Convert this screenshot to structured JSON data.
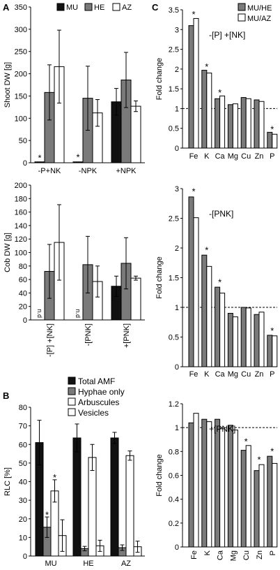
{
  "panel_labels": [
    "A",
    "B",
    "C"
  ],
  "colors": {
    "MU": "#111111",
    "HE": "#7a7a7a",
    "AZ": "#ffffff",
    "Hyphae": "#7a7a7a",
    "outline": "#000000"
  },
  "chart_data": [
    {
      "id": "A1",
      "type": "bar",
      "ylabel": "Shoot DW [g]",
      "ylim": [
        0,
        350
      ],
      "yticks": [
        0,
        50,
        100,
        150,
        200,
        250,
        300,
        350
      ],
      "categories": [
        "-P+NK",
        "-NPK",
        "+NPK"
      ],
      "legend": [
        "MU",
        "HE",
        "AZ"
      ],
      "legend_position": "top",
      "series": [
        {
          "name": "MU",
          "values": [
            2,
            2,
            137
          ],
          "err": [
            0,
            0,
            30
          ]
        },
        {
          "name": "HE",
          "values": [
            158,
            145,
            186
          ],
          "err": [
            62,
            72,
            62
          ]
        },
        {
          "name": "AZ",
          "values": [
            216,
            112,
            127
          ],
          "err": [
            82,
            30,
            12
          ]
        }
      ],
      "markers": [
        {
          "text": "*",
          "category": 0,
          "series": 0,
          "y": 10
        },
        {
          "text": "*",
          "category": 1,
          "series": 0,
          "y": 12
        }
      ]
    },
    {
      "id": "A2",
      "type": "bar",
      "ylabel": "Cob DW [g]",
      "ylim": [
        0,
        200
      ],
      "yticks": [
        0,
        20,
        40,
        60,
        80,
        100,
        120,
        140,
        160,
        180,
        200
      ],
      "categories": [
        "-[P] +[NK]",
        "-[PNK]",
        "+[PNK]"
      ],
      "series": [
        {
          "name": "MU",
          "values": [
            0,
            0,
            50
          ],
          "err": [
            0,
            0,
            15
          ]
        },
        {
          "name": "HE",
          "values": [
            72,
            82,
            84
          ],
          "err": [
            40,
            42,
            38
          ]
        },
        {
          "name": "AZ",
          "values": [
            115,
            57,
            62
          ],
          "err": [
            56,
            23,
            3
          ]
        }
      ],
      "nd": [
        {
          "text": "n.d",
          "category": 0
        },
        {
          "text": "n.d",
          "category": 1
        }
      ]
    },
    {
      "id": "B",
      "type": "bar",
      "ylabel": "RLC [%]",
      "ylim": [
        0,
        80
      ],
      "yticks": [
        0,
        10,
        20,
        30,
        40,
        50,
        60,
        70,
        80
      ],
      "categories": [
        "MU",
        "HE",
        "AZ"
      ],
      "legend": [
        "Total AMF",
        "Hyphae only",
        "Arbuscules",
        "Vesicles"
      ],
      "legend_position": "top-right",
      "series": [
        {
          "name": "Total AMF",
          "values": [
            61,
            63.5,
            63.5
          ],
          "err": [
            12,
            7.5,
            3
          ]
        },
        {
          "name": "Hyphae only",
          "values": [
            15.5,
            4,
            4.5
          ],
          "err": [
            5.5,
            1.2,
            1.5
          ]
        },
        {
          "name": "Arbuscules",
          "values": [
            35,
            53,
            54
          ],
          "err": [
            6,
            7,
            2.5
          ]
        },
        {
          "name": "Vesicles",
          "values": [
            11,
            5.5,
            5
          ],
          "err": [
            8.5,
            3,
            3
          ]
        }
      ],
      "markers": [
        {
          "text": "*",
          "category": 0,
          "series": 1,
          "y": 22
        },
        {
          "text": "*",
          "category": 0,
          "series": 2,
          "y": 42
        }
      ]
    },
    {
      "id": "C1",
      "type": "bar",
      "title": "-[P] +[NK]",
      "ylabel": "Fold change",
      "ylim": [
        0,
        3.5
      ],
      "yticks": [
        0,
        0.5,
        1,
        1.5,
        2,
        2.5,
        3,
        3.5
      ],
      "reference_line": 1,
      "categories": [
        "Fe",
        "K",
        "Ca",
        "Mg",
        "Cu",
        "Zn",
        "P"
      ],
      "legend": [
        "MU/HE",
        "MU/AZ"
      ],
      "legend_position": "top-right",
      "series": [
        {
          "name": "MU/HE",
          "values": [
            3.1,
            1.97,
            1.25,
            1.1,
            1.28,
            1.22,
            0.4
          ]
        },
        {
          "name": "MU/AZ",
          "values": [
            3.28,
            1.9,
            1.32,
            1.12,
            1.25,
            1.18,
            0.35
          ]
        }
      ],
      "markers": [
        {
          "text": "*",
          "category": 0,
          "y": 3.38
        },
        {
          "text": "*",
          "category": 1,
          "y": 2.05
        },
        {
          "text": "*",
          "category": 2,
          "y": 1.4
        },
        {
          "text": "*",
          "category": 6,
          "y": 0.47
        }
      ]
    },
    {
      "id": "C2",
      "type": "bar",
      "title": "-[PNK]",
      "ylabel": "Fold change",
      "ylim": [
        0,
        3
      ],
      "yticks": [
        0,
        0.5,
        1,
        1.5,
        2,
        2.5,
        3
      ],
      "reference_line": 1,
      "categories": [
        "Fe",
        "K",
        "Ca",
        "Mg",
        "Cu",
        "Zn",
        "P"
      ],
      "series": [
        {
          "name": "MU/HE",
          "values": [
            2.86,
            1.88,
            1.34,
            0.9,
            1.0,
            0.88,
            0.53
          ]
        },
        {
          "name": "MU/AZ",
          "values": [
            2.51,
            1.69,
            1.24,
            0.84,
            0.99,
            0.92,
            0.52
          ]
        }
      ],
      "markers": [
        {
          "text": "*",
          "category": 0,
          "y": 2.95
        },
        {
          "text": "*",
          "category": 1,
          "y": 1.96
        },
        {
          "text": "*",
          "category": 2,
          "y": 1.42
        },
        {
          "text": "*",
          "category": 6,
          "y": 0.6
        }
      ]
    },
    {
      "id": "C3",
      "type": "bar",
      "title": "+[PNK]",
      "ylabel": "Fold change",
      "ylim": [
        0,
        1.2
      ],
      "yticks": [
        0,
        0.2,
        0.4,
        0.6,
        0.8,
        1,
        1.2
      ],
      "reference_line": 1,
      "categories": [
        "Fe",
        "K",
        "Ca",
        "Mg",
        "Cu",
        "Zn",
        "P"
      ],
      "series": [
        {
          "name": "MU/HE",
          "values": [
            1.04,
            1.07,
            1.07,
            1.02,
            0.81,
            0.64,
            0.76
          ]
        },
        {
          "name": "MU/AZ",
          "values": [
            1.12,
            1.05,
            0.99,
            0.98,
            0.85,
            0.69,
            0.7
          ]
        }
      ],
      "markers": [
        {
          "text": "*",
          "category": 4,
          "y": 0.88
        },
        {
          "text": "*",
          "category": 5,
          "y": 0.73
        },
        {
          "text": "*",
          "category": 6,
          "y": 0.8
        }
      ]
    }
  ]
}
